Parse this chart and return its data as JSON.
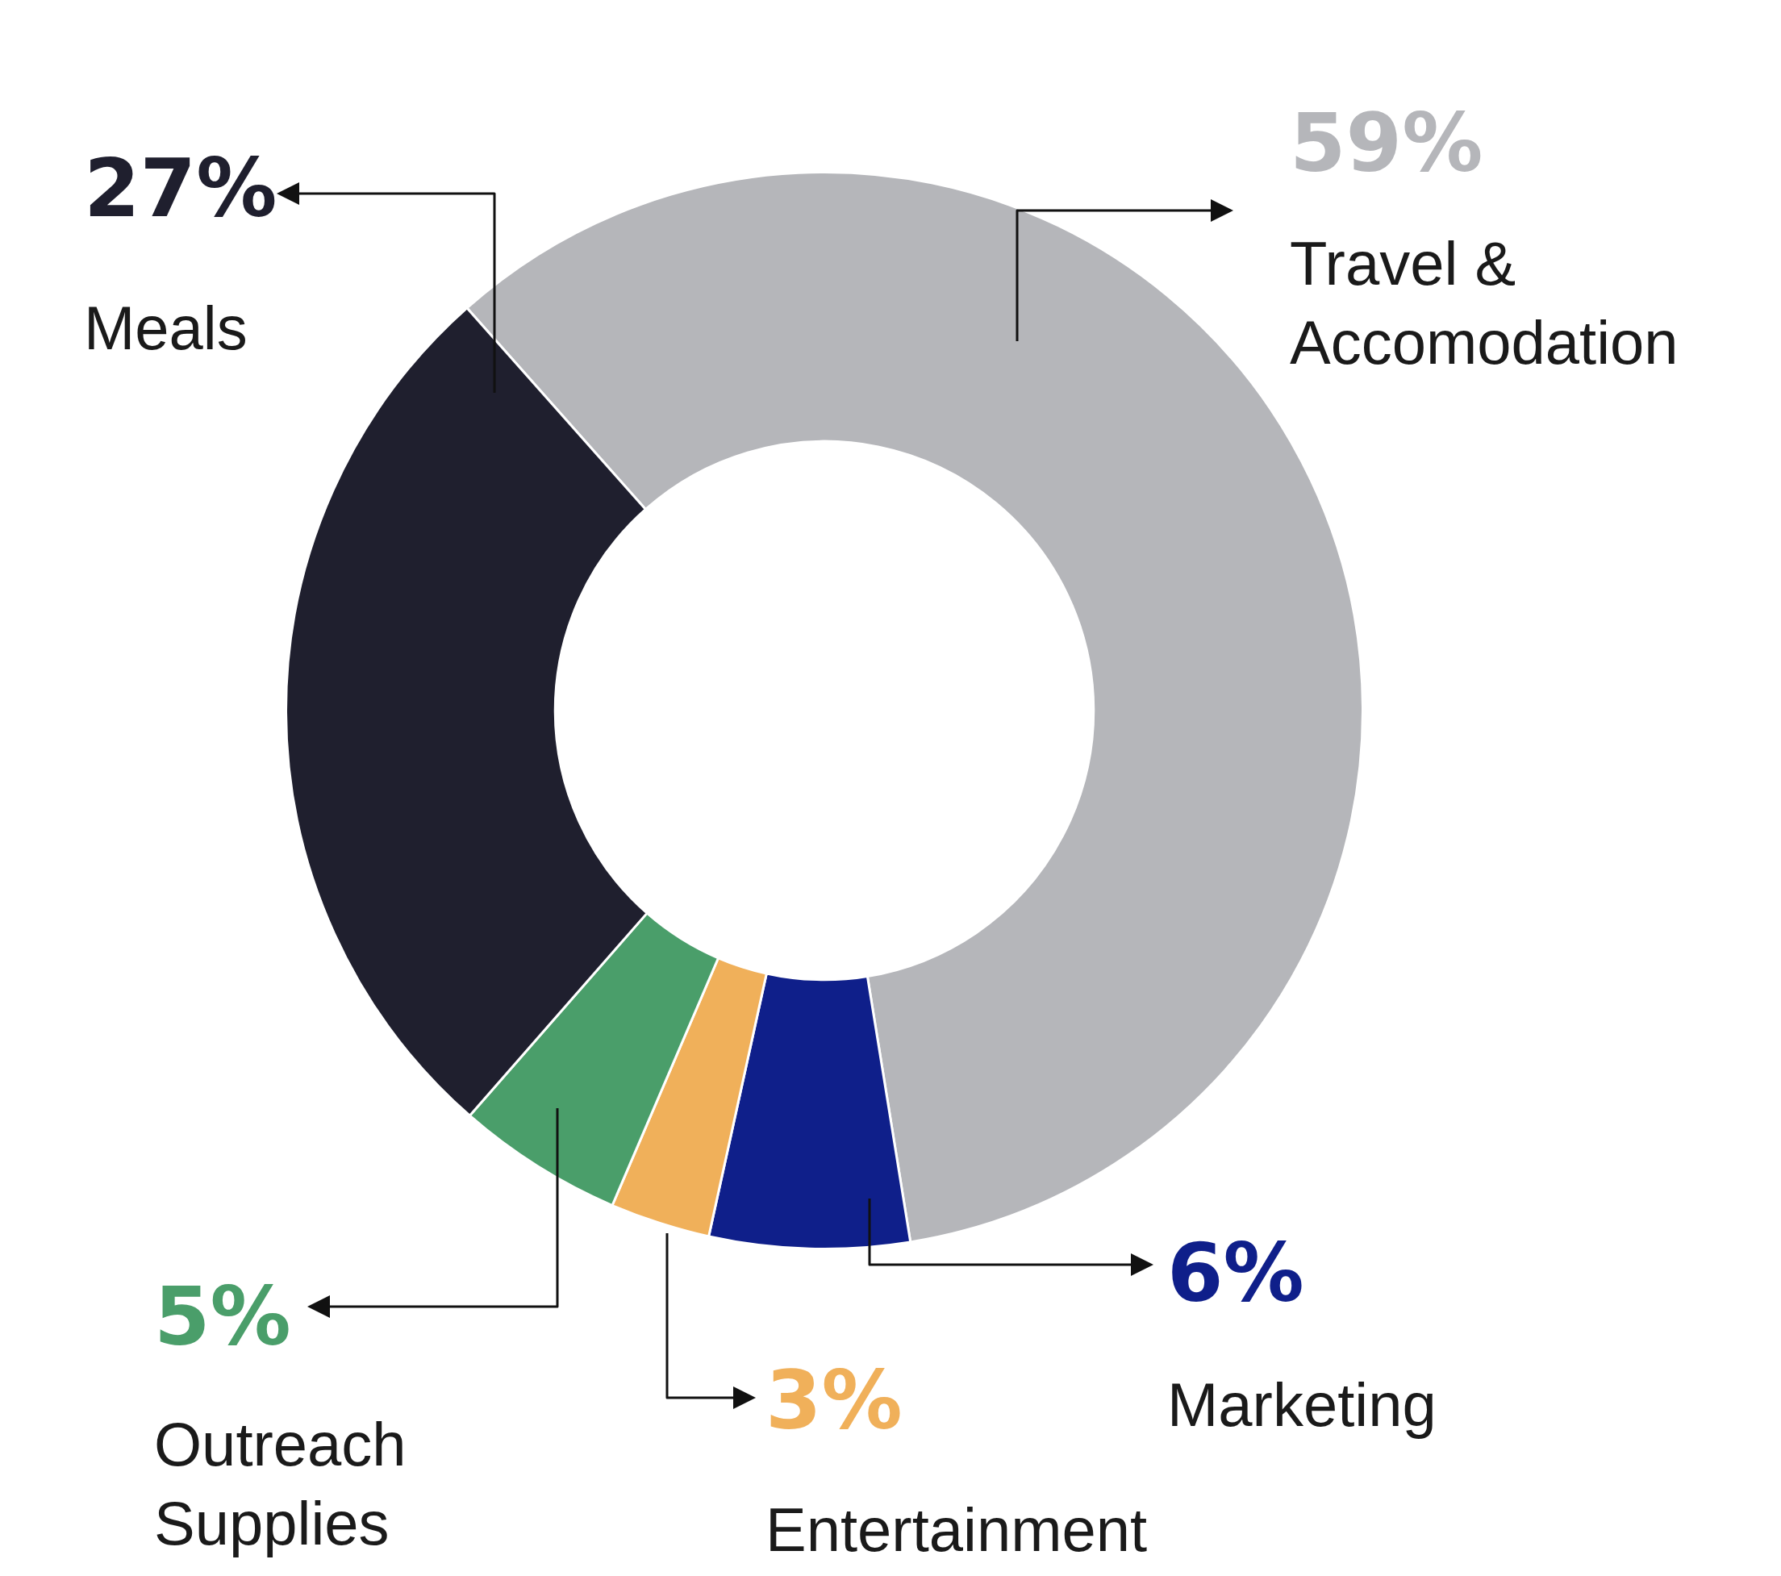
{
  "chart_data": {
    "type": "donut",
    "categories": [
      "Travel & Accomodation",
      "Marketing",
      "Entertainment",
      "Outreach Supplies",
      "Meals"
    ],
    "values": [
      59,
      6,
      3,
      5,
      27
    ],
    "colors": [
      "#b5b6ba",
      "#0f1f8a",
      "#f0b05a",
      "#4a9e6a",
      "#1f1f2e"
    ],
    "value_labels": [
      "59%",
      "6%",
      "3%",
      "5%",
      "27%"
    ]
  }
}
